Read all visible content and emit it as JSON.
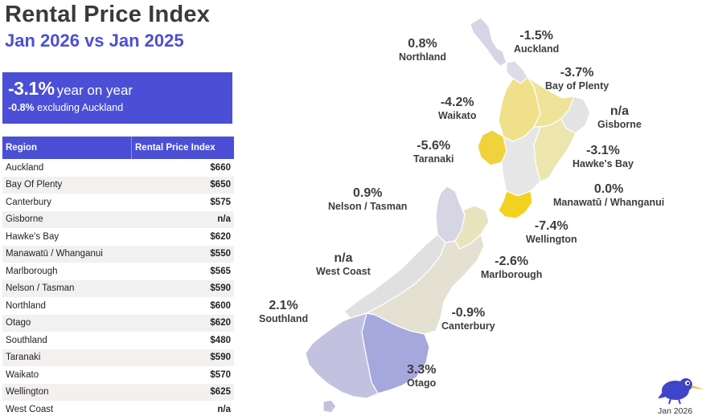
{
  "title": "Rental Price Index",
  "subtitle": "Jan 2026 vs Jan 2025",
  "kpi": {
    "yoy_value": "-3.1%",
    "yoy_label": "year on year",
    "ex_value": "-0.8%",
    "ex_label": "excluding Auckland"
  },
  "table": {
    "headers": [
      "Region",
      "Rental Price Index"
    ],
    "rows": [
      {
        "region": "Auckland",
        "value": "$660"
      },
      {
        "region": "Bay Of Plenty",
        "value": "$650"
      },
      {
        "region": "Canterbury",
        "value": "$575"
      },
      {
        "region": "Gisborne",
        "value": "n/a"
      },
      {
        "region": "Hawke's Bay",
        "value": "$620"
      },
      {
        "region": "Manawatū / Whanganui",
        "value": "$550"
      },
      {
        "region": "Marlborough",
        "value": "$565"
      },
      {
        "region": "Nelson / Tasman",
        "value": "$590"
      },
      {
        "region": "Northland",
        "value": "$600"
      },
      {
        "region": "Otago",
        "value": "$620"
      },
      {
        "region": "Southland",
        "value": "$480"
      },
      {
        "region": "Taranaki",
        "value": "$590"
      },
      {
        "region": "Waikato",
        "value": "$570"
      },
      {
        "region": "Wellington",
        "value": "$625"
      },
      {
        "region": "West Coast",
        "value": "n/a"
      }
    ]
  },
  "map_labels": {
    "northland": {
      "pct": "0.8%",
      "name": "Northland"
    },
    "auckland": {
      "pct": "-1.5%",
      "name": "Auckland"
    },
    "bay_of_plenty": {
      "pct": "-3.7%",
      "name": "Bay of Plenty"
    },
    "waikato": {
      "pct": "-4.2%",
      "name": "Waikato"
    },
    "gisborne": {
      "pct": "n/a",
      "name": "Gisborne"
    },
    "taranaki": {
      "pct": "-5.6%",
      "name": "Taranaki"
    },
    "hawkes_bay": {
      "pct": "-3.1%",
      "name": "Hawke's Bay"
    },
    "manawatu": {
      "pct": "0.0%",
      "name": "Manawatū / Whanganui"
    },
    "nelson": {
      "pct": "0.9%",
      "name": "Nelson / Tasman"
    },
    "wellington": {
      "pct": "-7.4%",
      "name": "Wellington"
    },
    "west_coast": {
      "pct": "n/a",
      "name": "West Coast"
    },
    "marlborough": {
      "pct": "-2.6%",
      "name": "Marlborough"
    },
    "southland": {
      "pct": "2.1%",
      "name": "Southland"
    },
    "canterbury": {
      "pct": "-0.9%",
      "name": "Canterbury"
    },
    "otago": {
      "pct": "3.3%",
      "name": "Otago"
    }
  },
  "region_colors": {
    "northland": "#d6d5e6",
    "auckland": "#dcdbe8",
    "waikato": "#f1e08a",
    "bay_of_plenty": "#efe39a",
    "gisborne": "#e3e3e3",
    "taranaki": "#f0d23c",
    "hawkes_bay": "#ede5ae",
    "manawatu": "#e6e6e6",
    "wellington": "#f2d21e",
    "nelson": "#d6d5e4",
    "marlborough": "#e9e3bd",
    "west_coast": "#e0e0e0",
    "canterbury": "#e4e1d3",
    "otago": "#a5a8dc",
    "southland": "#c2c2e0"
  },
  "footer_date": "Jan 2026"
}
